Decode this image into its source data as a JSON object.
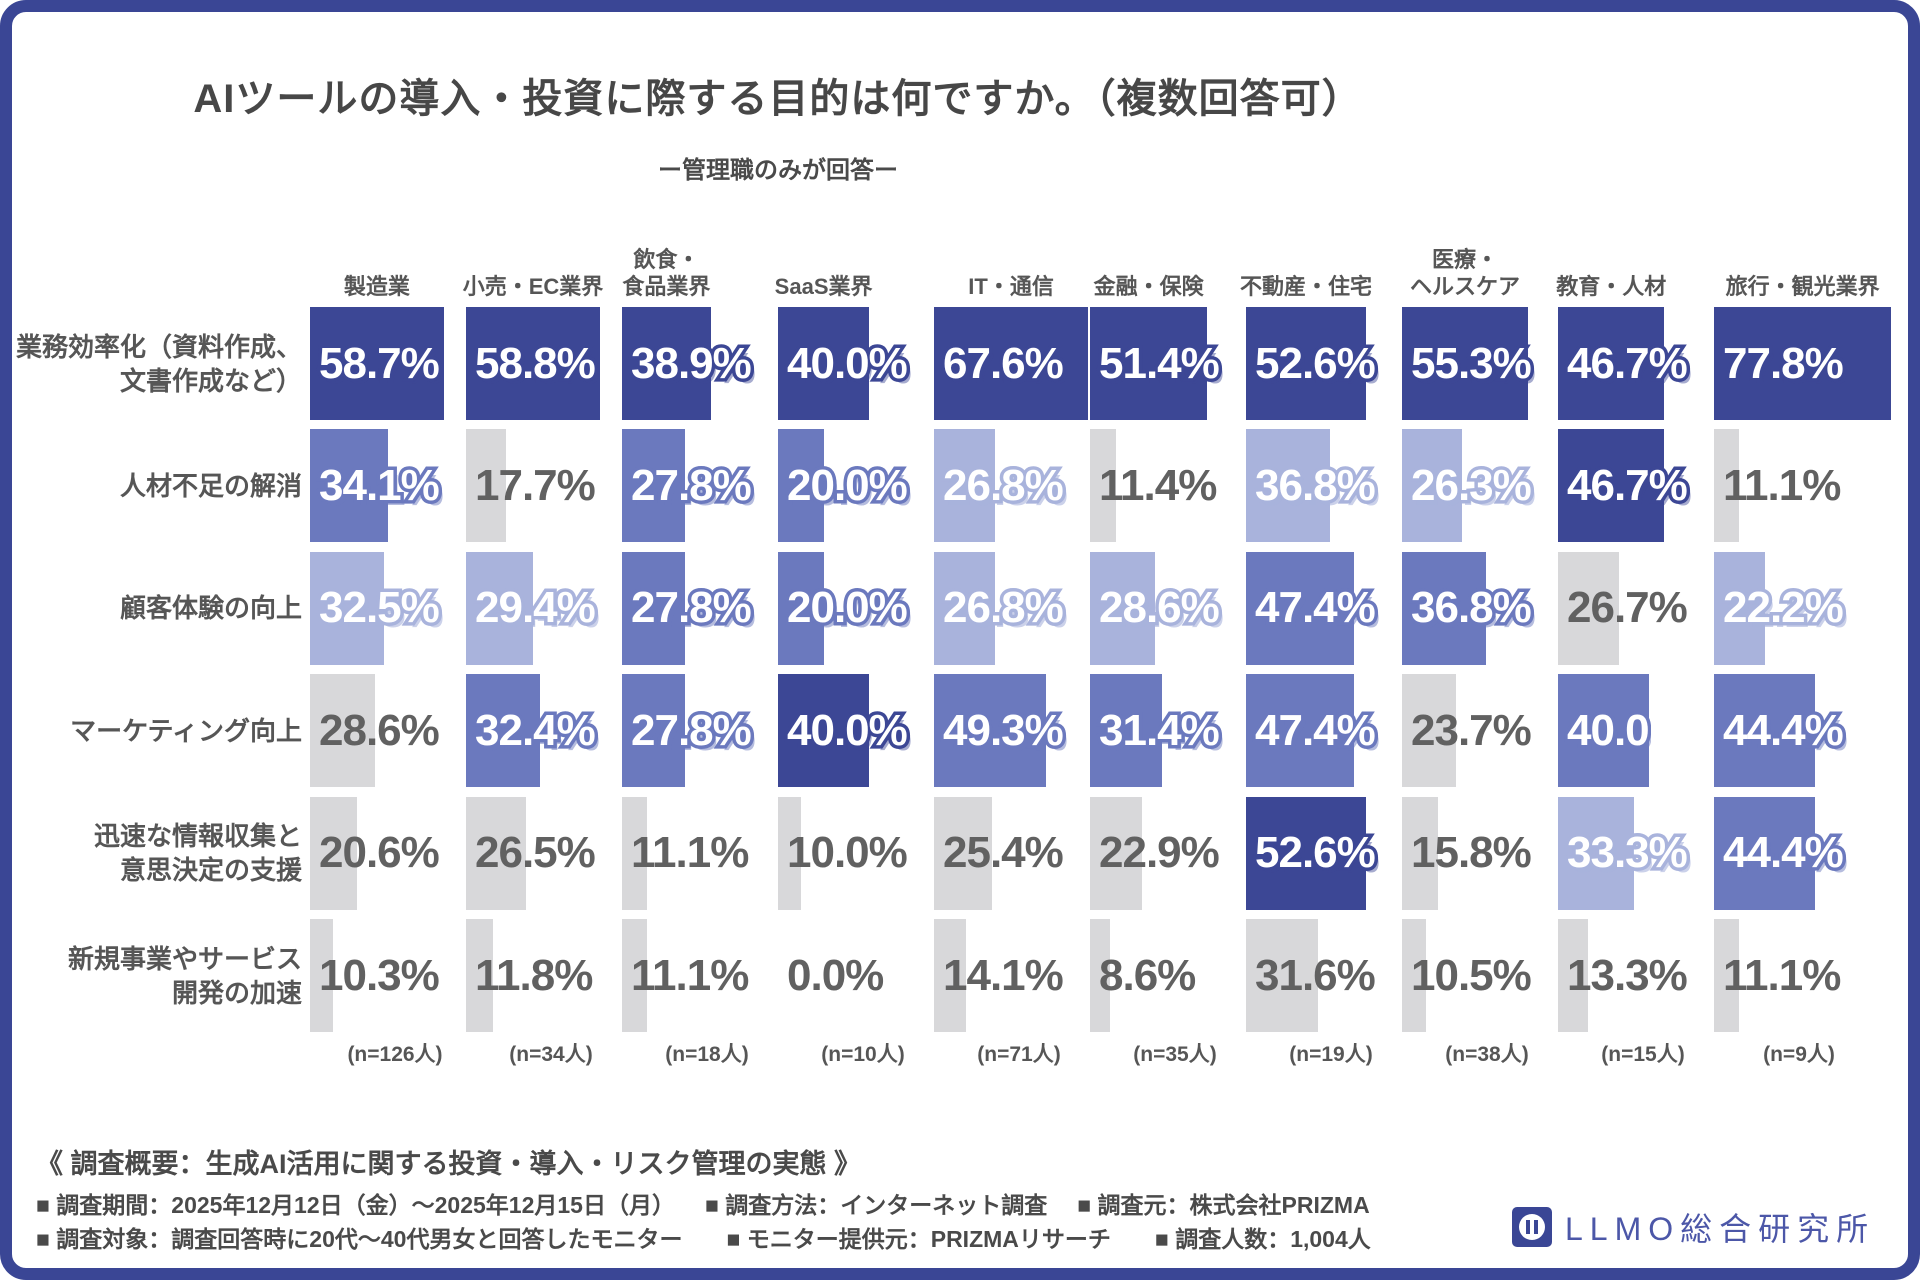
{
  "title": "AIツールの導入・投資に際する目的は何ですか。（複数回答可）",
  "subtitle": "ー管理職のみが回答ー",
  "chart_data": {
    "type": "heatmap",
    "unit": "%",
    "note": "cell tiers encode per-industry ranking: dark=1st, mid=2nd, light=3rd, gray=lower",
    "palette": {
      "dark": "#3C4795",
      "mid": "#6B79BE",
      "light": "#A9B3DC",
      "gray": "#D8D8DA"
    },
    "row_labels": [
      "業務効率化（資料作成、\n文書作成など）",
      "人材不足の解消",
      "顧客体験の向上",
      "マーケティング向上",
      "迅速な情報収集と\n意思決定の支援",
      "新規事業やサービス\n開発の加速"
    ],
    "columns": [
      {
        "label": "製造業",
        "n": "(n=126人)",
        "values": [
          58.7,
          34.1,
          32.5,
          28.6,
          20.6,
          10.3
        ],
        "tiers": [
          "dark",
          "mid",
          "light",
          "gray",
          "gray",
          "gray"
        ]
      },
      {
        "label": "小売・EC業界",
        "n": "(n=34人)",
        "values": [
          58.8,
          17.7,
          29.4,
          32.4,
          26.5,
          11.8
        ],
        "tiers": [
          "dark",
          "gray",
          "light",
          "mid",
          "gray",
          "gray"
        ]
      },
      {
        "label": "飲食・\n食品業界",
        "n": "(n=18人)",
        "values": [
          38.9,
          27.8,
          27.8,
          27.8,
          11.1,
          11.1
        ],
        "tiers": [
          "dark",
          "mid",
          "mid",
          "mid",
          "gray",
          "gray"
        ]
      },
      {
        "label": "SaaS業界",
        "n": "(n=10人)",
        "values": [
          40.0,
          20.0,
          20.0,
          40.0,
          10.0,
          0.0
        ],
        "tiers": [
          "dark",
          "mid",
          "mid",
          "dark",
          "gray",
          "gray"
        ]
      },
      {
        "label": "IT・通信",
        "n": "(n=71人)",
        "values": [
          67.6,
          26.8,
          26.8,
          49.3,
          25.4,
          14.1
        ],
        "tiers": [
          "dark",
          "light",
          "light",
          "mid",
          "gray",
          "gray"
        ]
      },
      {
        "label": "金融・保険",
        "n": "(n=35人)",
        "values": [
          51.4,
          11.4,
          28.6,
          31.4,
          22.9,
          8.6
        ],
        "tiers": [
          "dark",
          "gray",
          "light",
          "mid",
          "gray",
          "gray"
        ]
      },
      {
        "label": "不動産・住宅",
        "n": "(n=19人)",
        "values": [
          52.6,
          36.8,
          47.4,
          47.4,
          52.6,
          31.6
        ],
        "tiers": [
          "dark",
          "light",
          "mid",
          "mid",
          "dark",
          "gray"
        ]
      },
      {
        "label": "医療・\nヘルスケア",
        "n": "(n=38人)",
        "values": [
          55.3,
          26.3,
          36.8,
          23.7,
          15.8,
          10.5
        ],
        "tiers": [
          "dark",
          "light",
          "mid",
          "gray",
          "gray",
          "gray"
        ]
      },
      {
        "label": "教育・人材",
        "n": "(n=15人)",
        "values": [
          46.7,
          46.7,
          26.7,
          40.0,
          33.3,
          13.3
        ],
        "tiers": [
          "dark",
          "dark",
          "gray",
          "mid",
          "light",
          "gray"
        ],
        "pct_sign_hidden_rows": [
          3
        ]
      },
      {
        "label": "旅行・観光業界",
        "n": "(n=9人)",
        "values": [
          77.8,
          11.1,
          22.2,
          44.4,
          44.4,
          11.1
        ],
        "tiers": [
          "dark",
          "gray",
          "light",
          "mid",
          "mid",
          "gray"
        ]
      }
    ]
  },
  "footer": {
    "heading": "《 調査概要：生成AI活用に関する投資・導入・リスク管理の実態 》",
    "line2": [
      "■ 調査期間：2025年12月12日（金）～2025年12月15日（月）",
      "■ 調査方法：インターネット調査",
      "■ 調査元：株式会社PRIZMA"
    ],
    "line3": [
      "■ 調査対象：調査回答時に20代～40代男女と回答したモニター",
      "■ モニター提供元：PRIZMAリサーチ",
      "■ 調査人数：1,004人"
    ]
  },
  "logo": {
    "icon": "pause-circle-mark",
    "text": "LLMO総合研究所"
  },
  "frame_color": "#3A4695"
}
